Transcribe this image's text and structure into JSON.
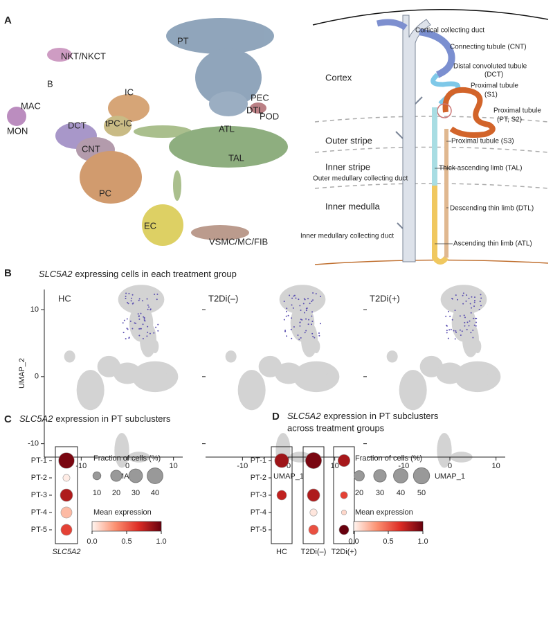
{
  "panel_a": {
    "letter": "A",
    "clusters": [
      "PT",
      "NKT/NKCT",
      "B",
      "MAC",
      "MON",
      "DCT",
      "IC",
      "tPC-IC",
      "CNT",
      "PC",
      "ATL",
      "TAL",
      "DTL",
      "PEC",
      "POD",
      "EC",
      "VSMC/MC/FIB"
    ],
    "nephron_labels": [
      "Cortical collecting duct",
      "Connecting tubule (CNT)",
      "Cortex",
      "Distal convoluted tubule",
      "(DCT)",
      "Proximal tubule",
      "(S1)",
      "Proximal tubule",
      "(PT, S2)",
      "Outer stripe",
      "Proximal tubule (S3)",
      "Inner stripe",
      "Thick ascending limb (TAL)",
      "Outer medullary collecting duct",
      "Descending thin limb (DTL)",
      "Inner medulla",
      "Inner medullary collecting duct",
      "Ascending thin limb (ATL)"
    ]
  },
  "chart_data": [
    {
      "type": "umap",
      "panel": "B",
      "gene": "SLC5A2",
      "title": "expressing cells in each treatment group",
      "groups": [
        "HC",
        "T2Di(–)",
        "T2Di(+)"
      ],
      "xlabel": "UMAP_1",
      "ylabel": "UMAP_2",
      "xlim": [
        -18,
        12
      ],
      "ylim": [
        -12,
        13
      ],
      "xticks": [
        -10,
        0,
        10
      ],
      "yticks": [
        -10,
        0,
        10
      ]
    },
    {
      "type": "dotplot",
      "panel": "C",
      "gene": "SLC5A2",
      "title": "expression in PT subclusters",
      "categories": [
        "PT-1",
        "PT-2",
        "PT-3",
        "PT-4",
        "PT-5"
      ],
      "series": [
        {
          "name": "SLC5A2",
          "fraction": [
            40,
            8,
            25,
            20,
            20
          ],
          "mean_expression": [
            0.95,
            0.03,
            0.8,
            0.2,
            0.6
          ]
        }
      ],
      "size_title": "Fraction of cells (%)",
      "size_legend": [
        10,
        20,
        30,
        40
      ],
      "color_title": "Mean expression",
      "color_lim": [
        0,
        1
      ],
      "color_ticks": [
        {
          "value": 0,
          "label": "0.0"
        },
        {
          "value": 0.5,
          "label": "0.5"
        },
        {
          "value": 1,
          "label": "1.0"
        }
      ],
      "colormap": [
        "#fff5f0",
        "#fc9272",
        "#de2d26",
        "#67000d"
      ]
    },
    {
      "type": "dotplot",
      "panel": "D",
      "gene": "SLC5A2",
      "title": "expression in PT subclusters",
      "subtitle": "across treatment groups",
      "categories": [
        "PT-1",
        "PT-2",
        "PT-3",
        "PT-4",
        "PT-5"
      ],
      "series": [
        {
          "name": "HC",
          "fraction": [
            38,
            null,
            18,
            null,
            null
          ],
          "mean_expression": [
            0.85,
            null,
            0.75,
            null,
            null
          ]
        },
        {
          "name": "T2Di(–)",
          "fraction": [
            50,
            null,
            30,
            10,
            18
          ],
          "mean_expression": [
            0.95,
            null,
            0.8,
            0.05,
            0.55
          ]
        },
        {
          "name": "T2Di(+)",
          "fraction": [
            28,
            null,
            10,
            5,
            18
          ],
          "mean_expression": [
            0.82,
            null,
            0.6,
            0.1,
            1.0
          ]
        }
      ],
      "size_title": "Fraction of cells (%)",
      "size_legend": [
        20,
        30,
        40,
        50
      ],
      "color_title": "Mean expression",
      "color_lim": [
        0,
        1
      ],
      "color_ticks": [
        {
          "value": 0,
          "label": "0.0"
        },
        {
          "value": 0.5,
          "label": "0.5"
        },
        {
          "value": 1,
          "label": "1.0"
        }
      ],
      "colormap": [
        "#fff5f0",
        "#fc9272",
        "#de2d26",
        "#67000d"
      ]
    }
  ]
}
